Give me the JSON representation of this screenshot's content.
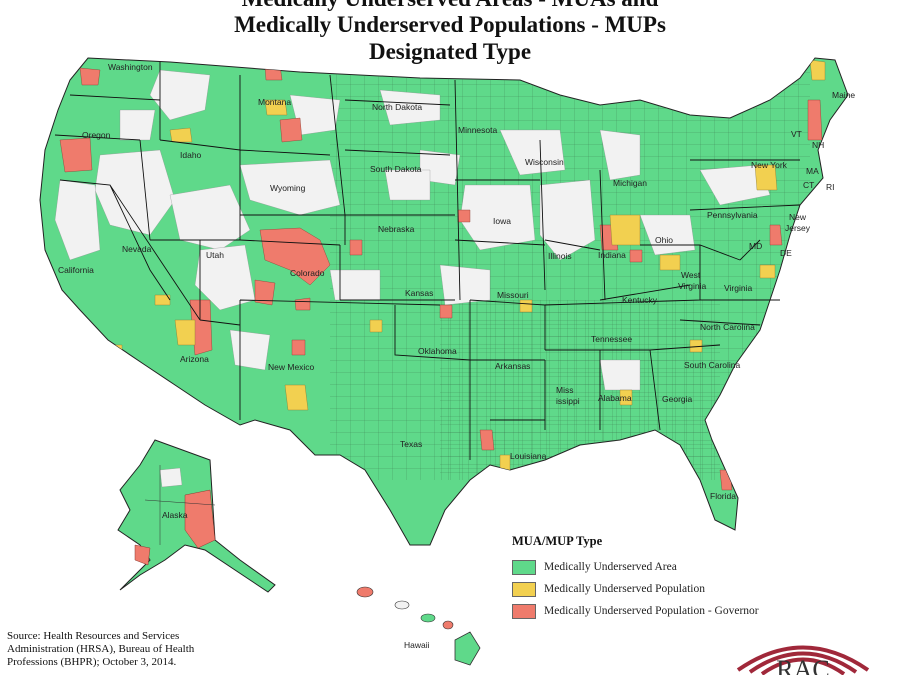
{
  "title": {
    "line1": "Medically Underserved Areas - MUAs and",
    "line2": "Medically Underserved Populations - MUPs",
    "line3": "Designated Type"
  },
  "legend": {
    "title": "MUA/MUP Type",
    "items": [
      {
        "label": "Medically Underserved Area",
        "color": "#5fd98a"
      },
      {
        "label": "Medically Underserved Population",
        "color": "#f2d050"
      },
      {
        "label": "Medically Underserved Population - Governor",
        "color": "#ef7b6c"
      }
    ]
  },
  "source": "Source: Health Resources and Services Administration (HRSA), Bureau of Health Professions (BHPR); October 3, 2014.",
  "logo_text": "RAC",
  "state_labels": {
    "washington": "Washington",
    "oregon": "Oregon",
    "california": "California",
    "nevada": "Nevada",
    "idaho": "Idaho",
    "montana": "Montana",
    "wyoming": "Wyoming",
    "utah": "Utah",
    "arizona": "Arizona",
    "colorado": "Colorado",
    "new_mexico": "New Mexico",
    "north_dakota": "North Dakota",
    "south_dakota": "South Dakota",
    "nebraska": "Nebraska",
    "kansas": "Kansas",
    "oklahoma": "Oklahoma",
    "texas": "Texas",
    "minnesota": "Minnesota",
    "iowa": "Iowa",
    "missouri": "Missouri",
    "arkansas": "Arkansas",
    "louisiana": "Louisiana",
    "wisconsin": "Wisconsin",
    "illinois": "Illinois",
    "michigan": "Michigan",
    "indiana": "Indiana",
    "ohio": "Ohio",
    "kentucky": "Kentucky",
    "tennessee": "Tennessee",
    "mississippi_1": "Miss",
    "mississippi_2": "issippi",
    "alabama": "Alabama",
    "georgia": "Georgia",
    "florida": "Florida",
    "south_carolina": "South Carolina",
    "north_carolina": "North Carolina",
    "virginia": "Virginia",
    "west_virginia_1": "West",
    "west_virginia_2": "Virginia",
    "pennsylvania": "Pennsylvania",
    "new_york": "New York",
    "new_jersey_1": "New",
    "new_jersey_2": "Jersey",
    "maryland": "MD",
    "delaware": "DE",
    "connecticut": "CT",
    "rhode_island": "RI",
    "massachusetts": "MA",
    "vermont": "VT",
    "new_hampshire": "NH",
    "maine": "Maine",
    "alaska": "Alaska",
    "hawaii": "Hawaii"
  }
}
